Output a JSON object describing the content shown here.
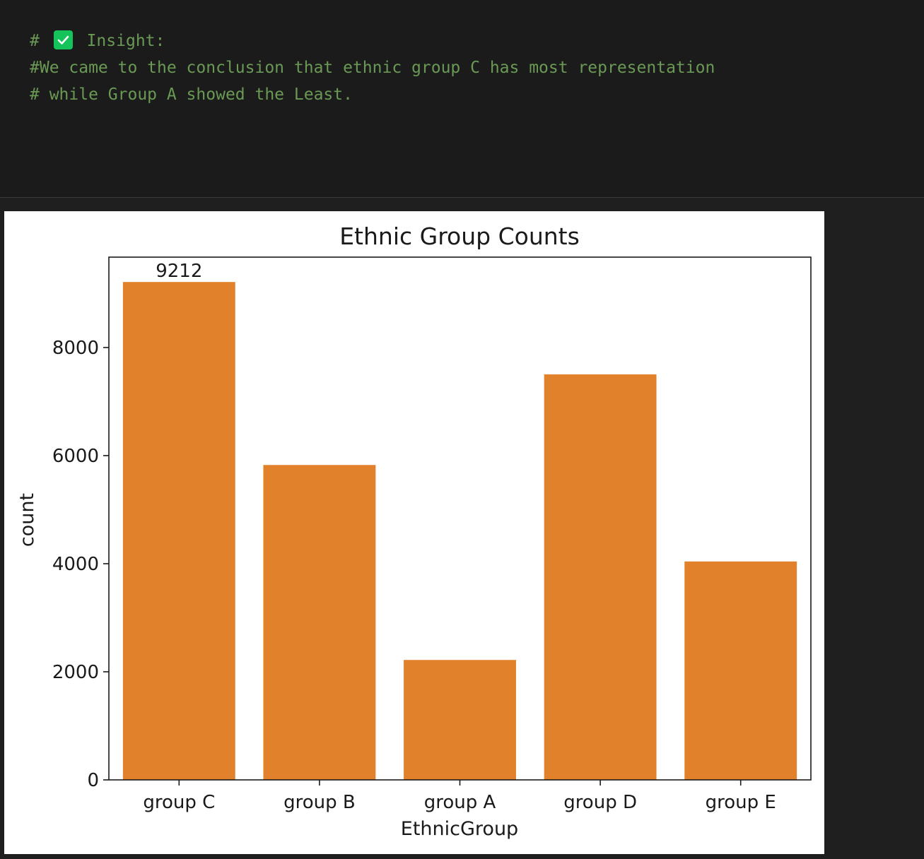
{
  "notebook": {
    "markdown_cell": {
      "line1_prefix": "#",
      "line1_text": "Insight:",
      "check_icon": "check-mark-icon",
      "line2": "#We came to the conclusion that ethnic group C has most representation",
      "line3": "# while Group A showed the Least."
    }
  },
  "colors": {
    "bar": "#e1812c",
    "comment_text": "#6a9955",
    "check_bg": "#14c45a"
  },
  "chart_data": {
    "type": "bar",
    "title": "Ethnic Group Counts",
    "xlabel": "EthnicGroup",
    "ylabel": "count",
    "categories": [
      "group C",
      "group B",
      "group A",
      "group D",
      "group E"
    ],
    "values": [
      9212,
      5826,
      2219,
      7503,
      4041
    ],
    "bar_label": "9212",
    "ylim": [
      0,
      9672
    ],
    "yticks": [
      0,
      2000,
      4000,
      6000,
      8000
    ],
    "grid": false
  }
}
